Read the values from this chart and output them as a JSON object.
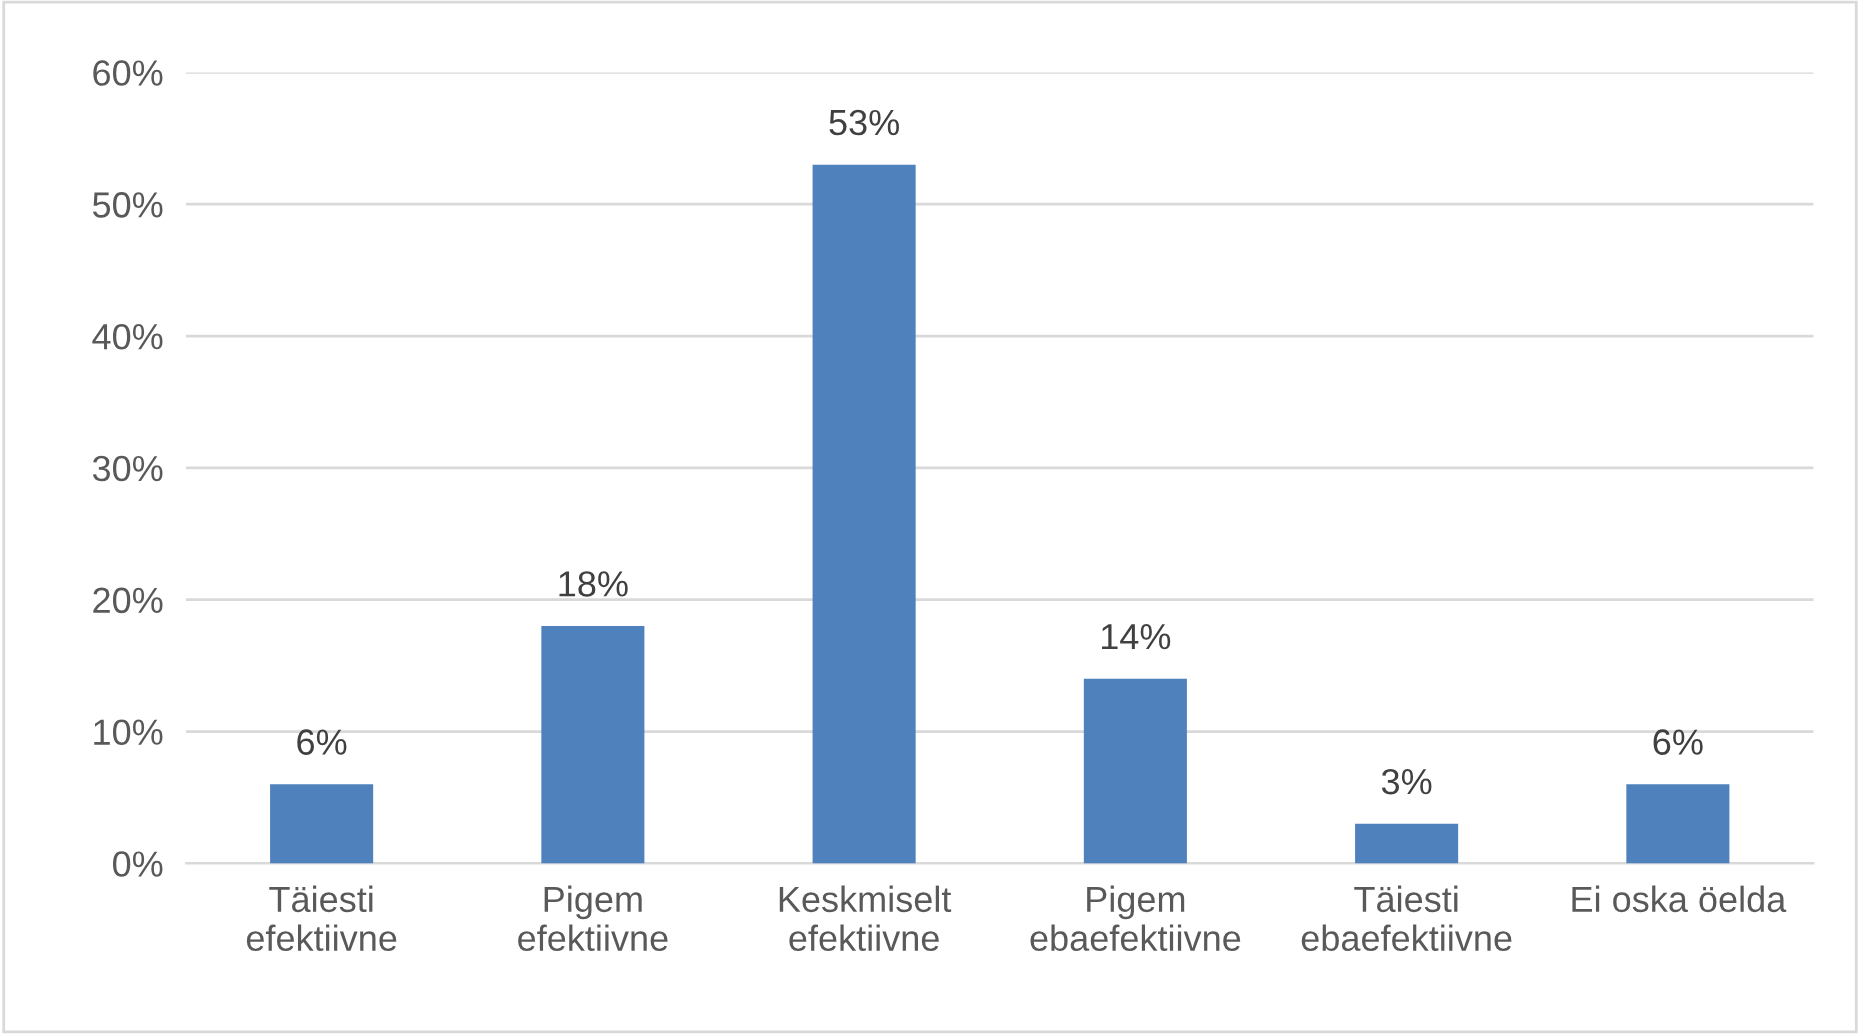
{
  "chart_data": {
    "type": "bar",
    "categories": [
      "Täiesti\nefektiivne",
      "Pigem\nefektiivne",
      "Keskmiselt\nefektiivne",
      "Pigem\nebaefektiivne",
      "Täiesti\nebaefektiivne",
      "Ei oska öelda"
    ],
    "values": [
      6,
      18,
      53,
      14,
      3,
      6
    ],
    "color": "#4f81bd",
    "ylim": [
      0,
      60
    ],
    "yticks": [
      {
        "value": 0,
        "label": "0%"
      },
      {
        "value": 10,
        "label": "10%"
      },
      {
        "value": 20,
        "label": "20%"
      },
      {
        "value": 30,
        "label": "30%"
      },
      {
        "value": 40,
        "label": "40%"
      },
      {
        "value": 50,
        "label": "50%"
      },
      {
        "value": 60,
        "label": "60%"
      }
    ],
    "value_labels": [
      "6%",
      "18%",
      "53%",
      "14%",
      "3%",
      "6%"
    ],
    "grid": "y"
  }
}
